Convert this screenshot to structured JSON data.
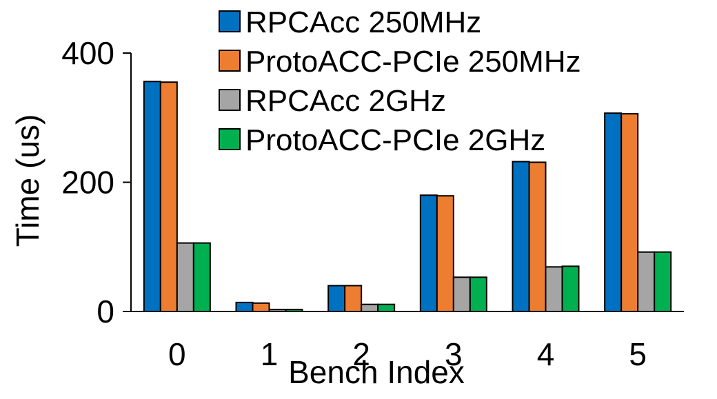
{
  "chart_data": {
    "type": "bar",
    "xlabel": "Bench Index",
    "ylabel": "Time (us)",
    "ylim": [
      0,
      400
    ],
    "yticks": [
      0,
      200,
      400
    ],
    "categories": [
      "0",
      "1",
      "2",
      "3",
      "4",
      "5"
    ],
    "grid": false,
    "legend_position": "top-right",
    "series": [
      {
        "name": "RPCAcc 250MHz",
        "color": "#0070c0",
        "values": [
          356,
          14,
          40,
          180,
          232,
          307
        ]
      },
      {
        "name": "ProtoACC-PCIe 250MHz",
        "color": "#ed7d31",
        "values": [
          355,
          13,
          40,
          179,
          231,
          306
        ]
      },
      {
        "name": "RPCAcc 2GHz",
        "color": "#a5a5a5",
        "values": [
          106,
          3,
          11,
          53,
          69,
          92
        ]
      },
      {
        "name": "ProtoACC-PCIe 2GHz",
        "color": "#00b050",
        "values": [
          106,
          3,
          11,
          53,
          70,
          92
        ]
      }
    ]
  }
}
